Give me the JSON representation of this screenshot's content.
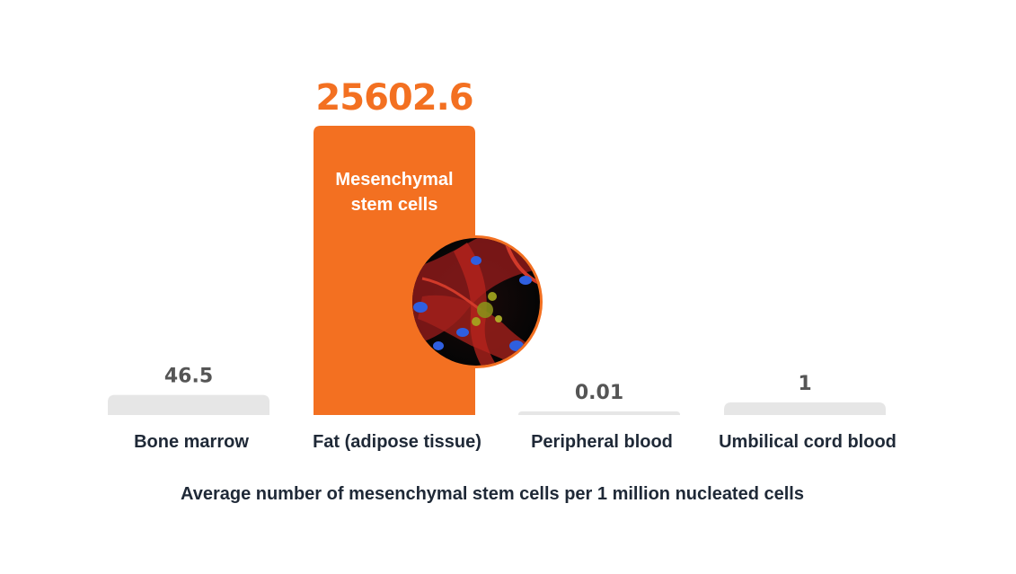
{
  "chart_data": {
    "type": "bar",
    "categories": [
      "Bone marrow",
      "Fat (adipose tissue)",
      "Peripheral blood",
      "Umbilical cord blood"
    ],
    "values": [
      46.5,
      25602.6,
      0.01,
      1
    ],
    "value_labels": [
      "46.5",
      "25602.6",
      "0.01",
      "1"
    ],
    "highlight_index": 1,
    "highlight_label": [
      "Mesenchymal",
      "stem cells"
    ],
    "caption": "Average number of mesenchymal stem cells per 1 million nucleated cells",
    "axis": "none",
    "grid": false,
    "legend": "none",
    "scale": "not-linear (visual only)",
    "colors": {
      "highlight": "#F37021",
      "default_bar": "#E6E6E6",
      "value_text": "#555555",
      "label_text": "#1f2937"
    }
  }
}
